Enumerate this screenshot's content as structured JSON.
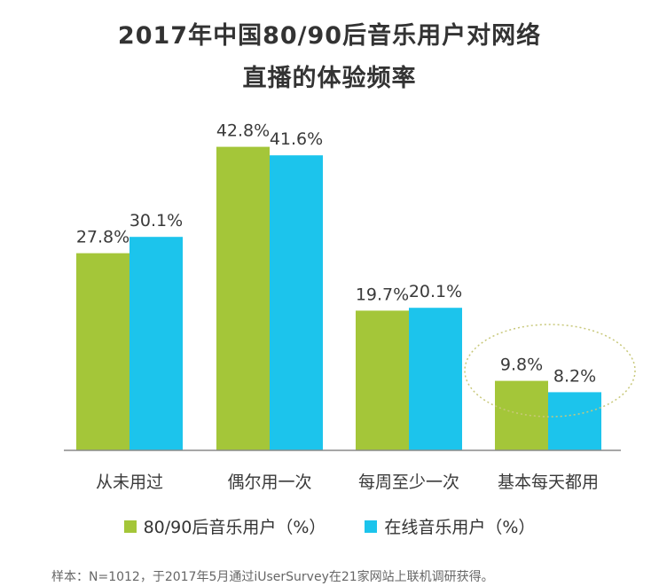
{
  "chart_data": {
    "type": "bar",
    "title": "2017年中国80/90后音乐用户对网络",
    "subtitle": "直播的体验频率",
    "categories": [
      "从未用过",
      "偶尔用一次",
      "每周至少一次",
      "基本每天都用"
    ],
    "series": [
      {
        "name": "80/90后音乐用户（%）",
        "values": [
          27.8,
          42.8,
          19.7,
          9.8
        ],
        "color": "#a4c639"
      },
      {
        "name": "在线音乐用户（%）",
        "values": [
          30.1,
          41.6,
          20.1,
          8.2
        ],
        "color": "#1cc4ec"
      }
    ],
    "value_labels": [
      [
        "27.8%",
        "42.8%",
        "19.7%",
        "9.8%"
      ],
      [
        "30.1%",
        "41.6%",
        "20.1%",
        "8.2%"
      ]
    ],
    "ylim": [
      0,
      50
    ],
    "grid": false,
    "legend_position": "bottom",
    "annotation": "dotted ellipse around 基本每天都用"
  },
  "footnote": "样本：N=1012，于2017年5月通过iUserSurvey在21家网站上联机调研获得。"
}
